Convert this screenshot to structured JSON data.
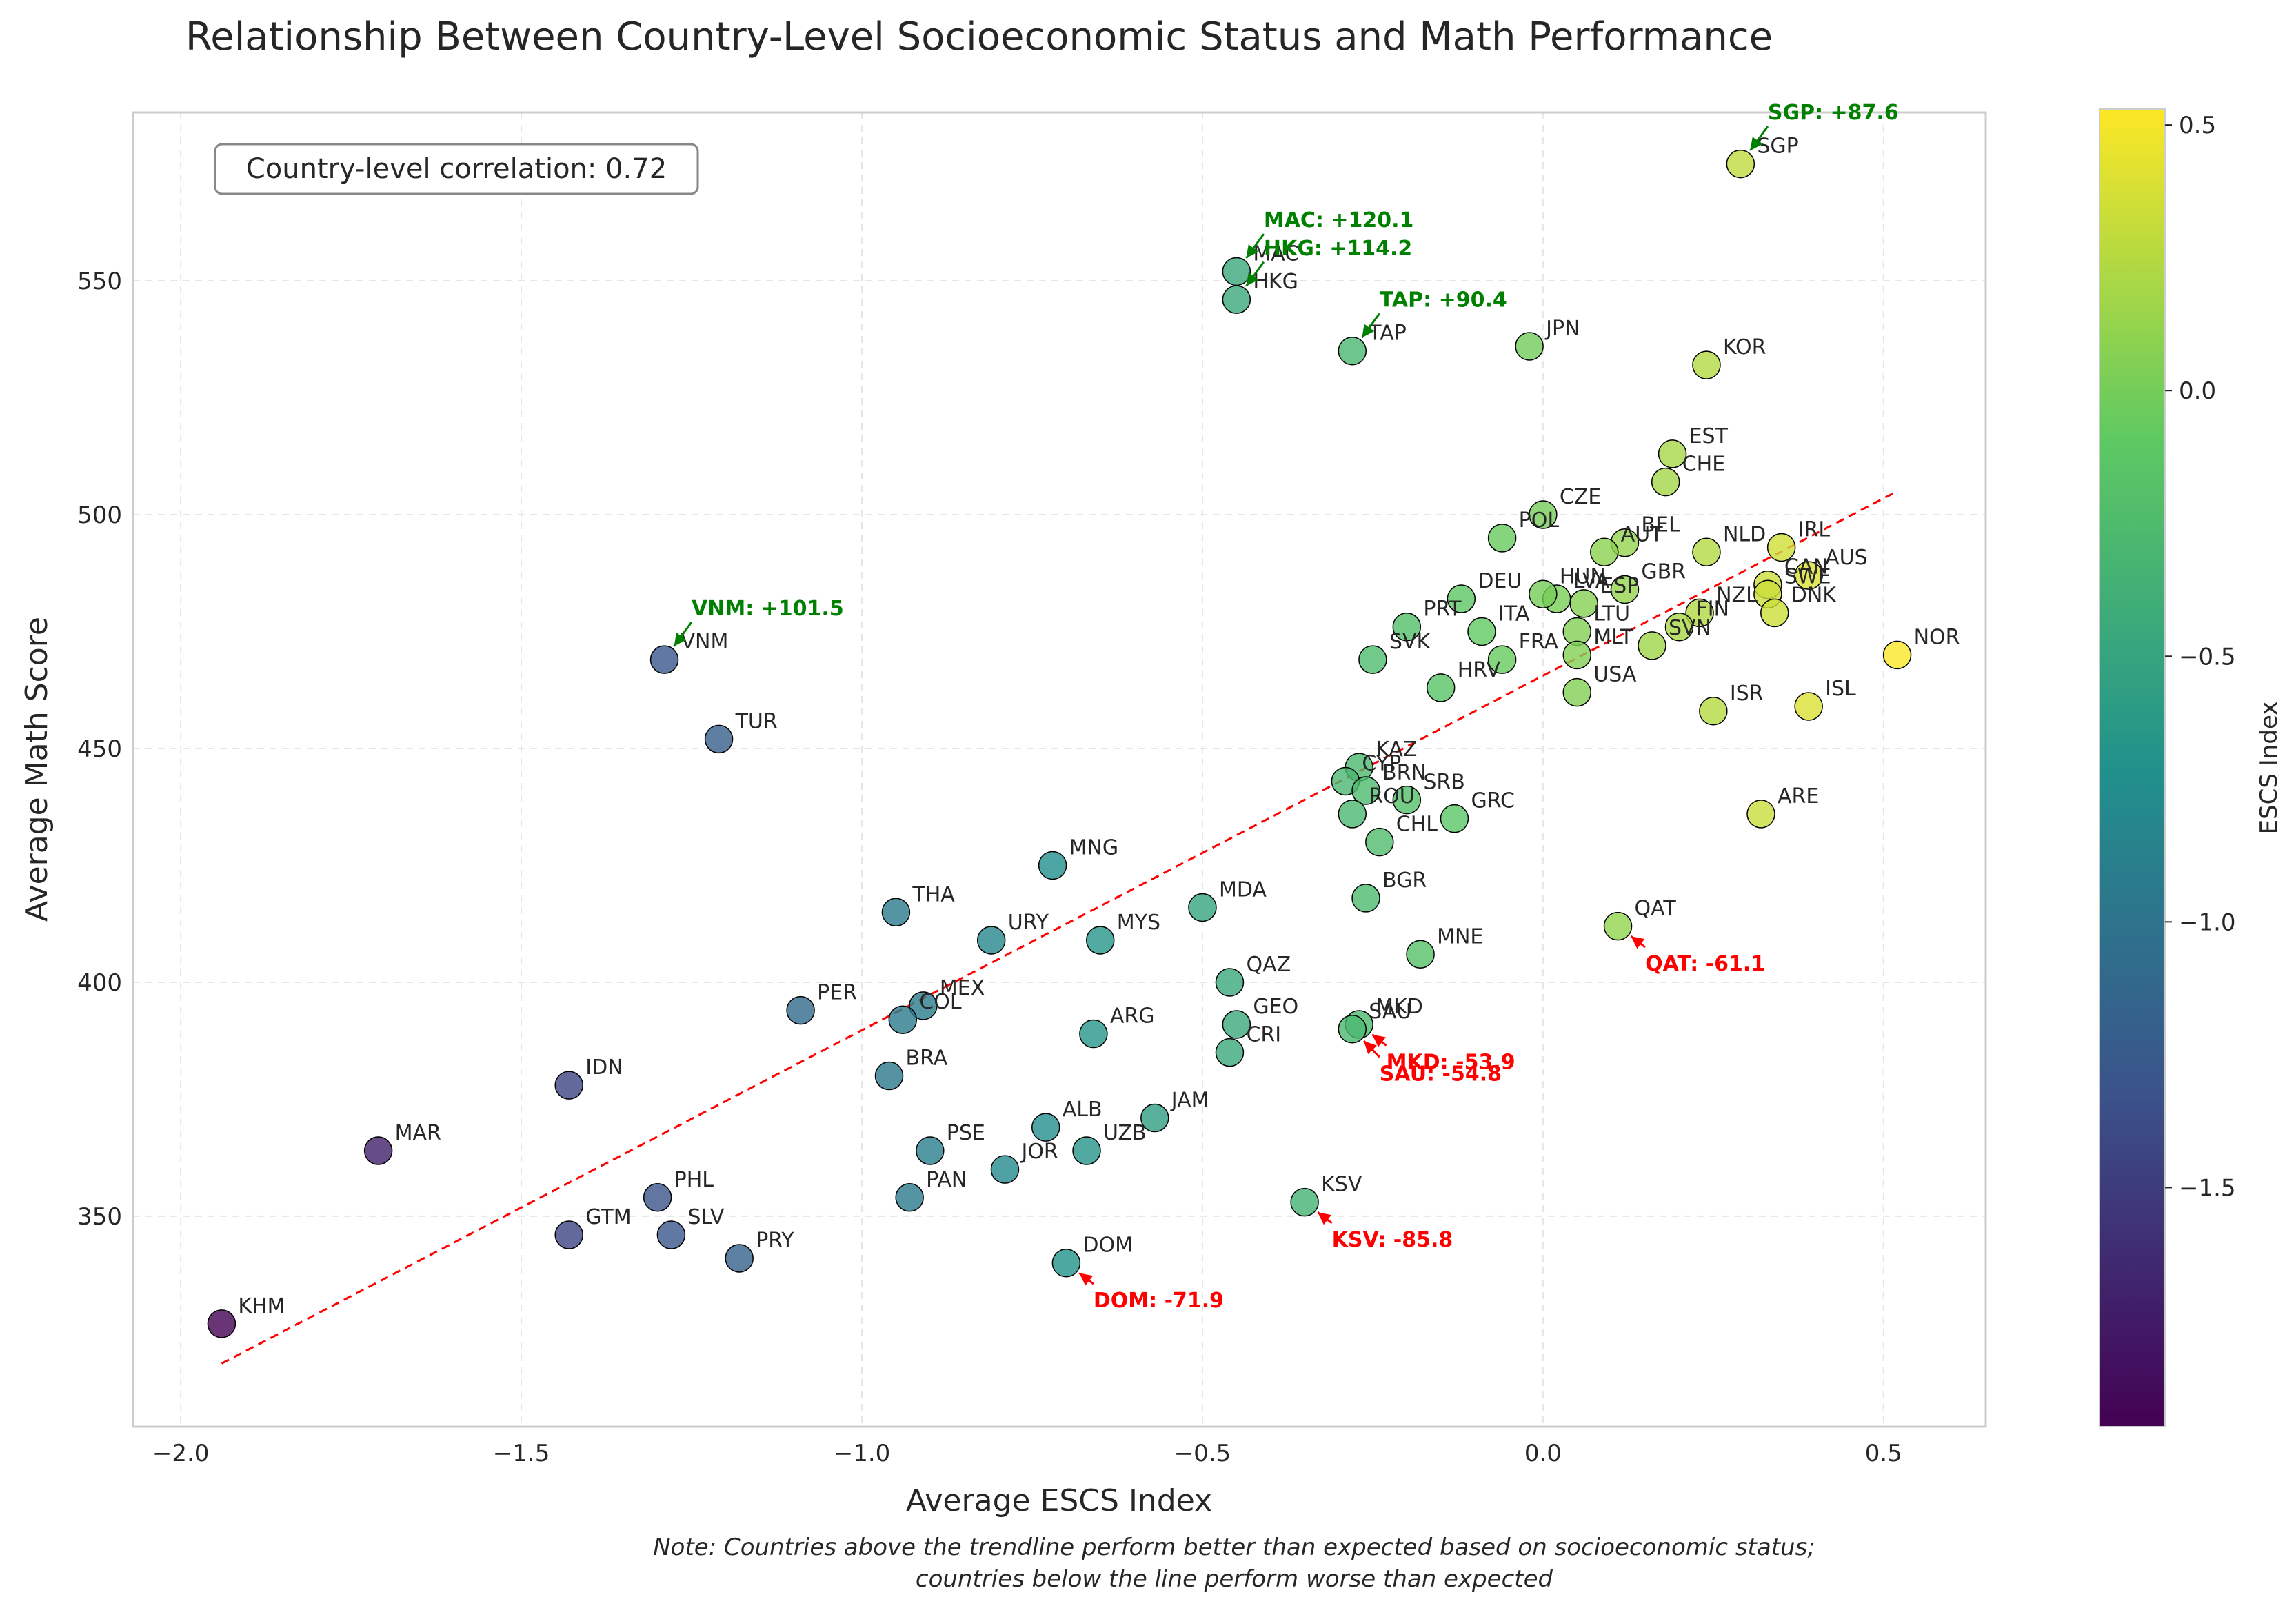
{
  "chart_data": {
    "type": "scatter",
    "title": "Relationship Between Country-Level Socioeconomic Status and Math Performance",
    "xlabel": "Average ESCS Index",
    "ylabel": "Average Math Score",
    "xlim": [
      -2.07,
      0.65
    ],
    "ylim": [
      305,
      586
    ],
    "xticks": [
      -2.0,
      -1.5,
      -1.0,
      -0.5,
      0.0,
      0.5
    ],
    "xtick_labels": [
      "−2.0",
      "−1.5",
      "−1.0",
      "−0.5",
      "0.0",
      "0.5"
    ],
    "yticks": [
      350,
      400,
      450,
      500,
      550
    ],
    "ytick_labels": [
      "350",
      "400",
      "450",
      "500",
      "550"
    ],
    "grid": true,
    "correlation_text": "Country-level correlation: 0.72",
    "note_line1": "Note: Countries above the trendline perform better than expected based on socioeconomic status;",
    "note_line2": "countries below the line perform worse than expected",
    "trendline": {
      "x": [
        -1.94,
        0.52
      ],
      "y": [
        318.5,
        505.0
      ],
      "color": "#ff0000"
    },
    "colorbar": {
      "label": "ESCS Index",
      "range": [
        -1.95,
        0.53
      ],
      "ticks": [
        -1.5,
        -1.0,
        -0.5,
        0.0,
        0.5
      ],
      "tick_labels": [
        "−1.5",
        "−1.0",
        "−0.5",
        "0.0",
        "0.5"
      ],
      "colormap": [
        "#440154",
        "#3b528b",
        "#21918c",
        "#5ec962",
        "#fde725"
      ]
    },
    "points": [
      {
        "label": "SGP",
        "x": 0.29,
        "y": 575
      },
      {
        "label": "MAC",
        "x": -0.45,
        "y": 552
      },
      {
        "label": "HKG",
        "x": -0.45,
        "y": 546
      },
      {
        "label": "TAP",
        "x": -0.28,
        "y": 535
      },
      {
        "label": "JPN",
        "x": -0.02,
        "y": 536
      },
      {
        "label": "KOR",
        "x": 0.24,
        "y": 532
      },
      {
        "label": "EST",
        "x": 0.19,
        "y": 513
      },
      {
        "label": "CHE",
        "x": 0.18,
        "y": 507
      },
      {
        "label": "CZE",
        "x": 0.0,
        "y": 500
      },
      {
        "label": "POL",
        "x": -0.06,
        "y": 495
      },
      {
        "label": "BEL",
        "x": 0.12,
        "y": 494
      },
      {
        "label": "AUT",
        "x": 0.09,
        "y": 492
      },
      {
        "label": "NLD",
        "x": 0.24,
        "y": 492
      },
      {
        "label": "IRL",
        "x": 0.35,
        "y": 493
      },
      {
        "label": "AUS",
        "x": 0.39,
        "y": 487
      },
      {
        "label": "CAN",
        "x": 0.33,
        "y": 485
      },
      {
        "label": "SWE",
        "x": 0.33,
        "y": 483
      },
      {
        "label": "DNK",
        "x": 0.34,
        "y": 479
      },
      {
        "label": "GBR",
        "x": 0.12,
        "y": 484
      },
      {
        "label": "LVA",
        "x": 0.02,
        "y": 482
      },
      {
        "label": "ESP",
        "x": 0.06,
        "y": 481
      },
      {
        "label": "HUN",
        "x": 0.0,
        "y": 483
      },
      {
        "label": "DEU",
        "x": -0.12,
        "y": 482
      },
      {
        "label": "PRT",
        "x": -0.2,
        "y": 476
      },
      {
        "label": "ITA",
        "x": -0.09,
        "y": 475
      },
      {
        "label": "NZL",
        "x": 0.23,
        "y": 479
      },
      {
        "label": "FIN",
        "x": 0.2,
        "y": 476
      },
      {
        "label": "SVN",
        "x": 0.16,
        "y": 472
      },
      {
        "label": "LTU",
        "x": 0.05,
        "y": 475
      },
      {
        "label": "MLT",
        "x": 0.05,
        "y": 470
      },
      {
        "label": "FRA",
        "x": -0.06,
        "y": 469
      },
      {
        "label": "SVK",
        "x": -0.25,
        "y": 469
      },
      {
        "label": "HRV",
        "x": -0.15,
        "y": 463
      },
      {
        "label": "USA",
        "x": 0.05,
        "y": 462
      },
      {
        "label": "NOR",
        "x": 0.52,
        "y": 470
      },
      {
        "label": "ISR",
        "x": 0.25,
        "y": 458
      },
      {
        "label": "ISL",
        "x": 0.39,
        "y": 459
      },
      {
        "label": "ARE",
        "x": 0.32,
        "y": 436
      },
      {
        "label": "VNM",
        "x": -1.29,
        "y": 469
      },
      {
        "label": "TUR",
        "x": -1.21,
        "y": 452
      },
      {
        "label": "KAZ",
        "x": -0.27,
        "y": 446
      },
      {
        "label": "CYP",
        "x": -0.29,
        "y": 443
      },
      {
        "label": "BRN",
        "x": -0.26,
        "y": 441
      },
      {
        "label": "SRB",
        "x": -0.2,
        "y": 439
      },
      {
        "label": "ROU",
        "x": -0.28,
        "y": 436
      },
      {
        "label": "GRC",
        "x": -0.13,
        "y": 435
      },
      {
        "label": "CHL",
        "x": -0.24,
        "y": 430
      },
      {
        "label": "BGR",
        "x": -0.26,
        "y": 418
      },
      {
        "label": "MNG",
        "x": -0.72,
        "y": 425
      },
      {
        "label": "THA",
        "x": -0.95,
        "y": 415
      },
      {
        "label": "URY",
        "x": -0.81,
        "y": 409
      },
      {
        "label": "MYS",
        "x": -0.65,
        "y": 409
      },
      {
        "label": "MDA",
        "x": -0.5,
        "y": 416
      },
      {
        "label": "QAT",
        "x": 0.11,
        "y": 412
      },
      {
        "label": "MNE",
        "x": -0.18,
        "y": 406
      },
      {
        "label": "QAZ",
        "x": -0.46,
        "y": 400
      },
      {
        "label": "PER",
        "x": -1.09,
        "y": 394
      },
      {
        "label": "MEX",
        "x": -0.91,
        "y": 395
      },
      {
        "label": "COL",
        "x": -0.94,
        "y": 392
      },
      {
        "label": "ARG",
        "x": -0.66,
        "y": 389
      },
      {
        "label": "GEO",
        "x": -0.45,
        "y": 391
      },
      {
        "label": "MKD",
        "x": -0.27,
        "y": 391
      },
      {
        "label": "SAU",
        "x": -0.28,
        "y": 390
      },
      {
        "label": "CRI",
        "x": -0.46,
        "y": 385
      },
      {
        "label": "BRA",
        "x": -0.96,
        "y": 380
      },
      {
        "label": "IDN",
        "x": -1.43,
        "y": 378
      },
      {
        "label": "MAR",
        "x": -1.71,
        "y": 364
      },
      {
        "label": "JAM",
        "x": -0.57,
        "y": 371
      },
      {
        "label": "ALB",
        "x": -0.73,
        "y": 369
      },
      {
        "label": "UZB",
        "x": -0.67,
        "y": 364
      },
      {
        "label": "PSE",
        "x": -0.9,
        "y": 364
      },
      {
        "label": "JOR",
        "x": -0.79,
        "y": 360
      },
      {
        "label": "PAN",
        "x": -0.93,
        "y": 354
      },
      {
        "label": "PHL",
        "x": -1.3,
        "y": 354
      },
      {
        "label": "SLV",
        "x": -1.28,
        "y": 346
      },
      {
        "label": "GTM",
        "x": -1.43,
        "y": 346
      },
      {
        "label": "PRY",
        "x": -1.18,
        "y": 341
      },
      {
        "label": "KSV",
        "x": -0.35,
        "y": 353
      },
      {
        "label": "DOM",
        "x": -0.7,
        "y": 340
      },
      {
        "label": "KHM",
        "x": -1.94,
        "y": 327
      }
    ],
    "annotations": [
      {
        "text": "SGP: +87.6",
        "target": "SGP",
        "color": "#008000",
        "dx": 0.04,
        "dy": 9.5
      },
      {
        "text": "MAC: +120.1",
        "target": "MAC",
        "color": "#008000",
        "dx": 0.04,
        "dy": 9.5
      },
      {
        "text": "HKG: +114.2",
        "target": "HKG",
        "color": "#008000",
        "dx": 0.04,
        "dy": 9.5
      },
      {
        "text": "TAP: +90.4",
        "target": "TAP",
        "color": "#008000",
        "dx": 0.04,
        "dy": 9.5
      },
      {
        "text": "VNM: +101.5",
        "target": "VNM",
        "color": "#008000",
        "dx": 0.04,
        "dy": 9.5
      },
      {
        "text": "QAT: -61.1",
        "target": "QAT",
        "color": "#ff0000",
        "dx": 0.04,
        "dy": -9.5
      },
      {
        "text": "MKD: -53.9",
        "target": "MKD",
        "color": "#ff0000",
        "dx": 0.04,
        "dy": -9.5
      },
      {
        "text": "SAU: -54.8",
        "target": "SAU",
        "color": "#ff0000",
        "dx": 0.04,
        "dy": -11.0
      },
      {
        "text": "KSV: -85.8",
        "target": "KSV",
        "color": "#ff0000",
        "dx": 0.04,
        "dy": -9.5
      },
      {
        "text": "DOM: -71.9",
        "target": "DOM",
        "color": "#ff0000",
        "dx": 0.04,
        "dy": -9.5
      }
    ]
  }
}
